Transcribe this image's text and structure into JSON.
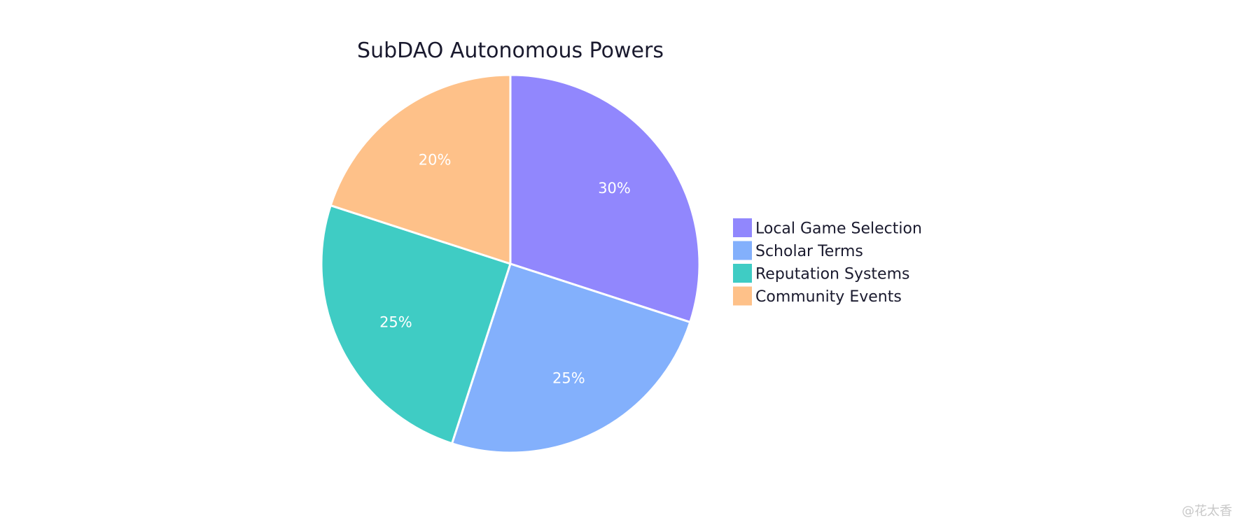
{
  "chart_data": {
    "type": "pie",
    "title": "SubDAO Autonomous Powers",
    "categories": [
      "Local Game Selection",
      "Scholar Terms",
      "Reputation Systems",
      "Community Events"
    ],
    "values": [
      30,
      25,
      25,
      20
    ],
    "labels": [
      "30%",
      "25%",
      "25%",
      "20%"
    ],
    "colors": [
      "#9187fd",
      "#83b0fc",
      "#3fccc4",
      "#fec189"
    ],
    "start_angle_deg": 90,
    "direction": "clockwise",
    "legend_placement": "right"
  },
  "watermark": "@花太香"
}
